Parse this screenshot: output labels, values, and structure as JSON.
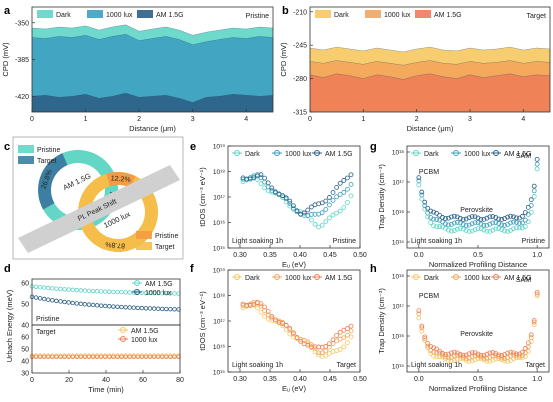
{
  "colors": {
    "dark": "#5fd5c7",
    "lux1000": "#3d9ec1",
    "am15": "#2c5f86",
    "t_dark": "#f6c85f",
    "t_lux1000": "#f3a55b",
    "t_am15": "#ee7d55",
    "c_pristine": "#62d7c5",
    "c_target": "#f5be4a",
    "c_dark_blue": "#3c7fa3",
    "c_orange": "#f39c43"
  },
  "panel_labels": [
    "a",
    "b",
    "c",
    "d",
    "e",
    "f",
    "g",
    "h"
  ],
  "chart_data": [
    {
      "id": "a",
      "type": "area",
      "tag": "Pristine",
      "ylabel": "CPD (mV)",
      "xlabel": "Distance (μm)",
      "xlim": [
        0,
        4.5
      ],
      "ylim": [
        -435,
        -335
      ],
      "xticks": [
        0,
        1,
        2,
        3,
        4
      ],
      "yticks": [
        -350,
        -385,
        -420
      ],
      "legend": [
        "Dark",
        "1000 lux",
        "AM 1.5G"
      ],
      "x": [
        0,
        0.25,
        0.5,
        0.75,
        1,
        1.25,
        1.5,
        1.75,
        2,
        2.25,
        2.5,
        2.75,
        3,
        3.25,
        3.5,
        3.75,
        4,
        4.25,
        4.5
      ],
      "series": [
        {
          "name": "Dark",
          "values": [
            -355,
            -356,
            -354,
            -355,
            -353,
            -357,
            -354,
            -352,
            -358,
            -356,
            -354,
            -357,
            -362,
            -359,
            -357,
            -355,
            -356,
            -354,
            -355
          ]
        },
        {
          "name": "1000 lux",
          "values": [
            -364,
            -365,
            -363,
            -364,
            -362,
            -366,
            -363,
            -361,
            -367,
            -365,
            -363,
            -366,
            -371,
            -368,
            -366,
            -364,
            -365,
            -363,
            -364
          ]
        },
        {
          "name": "AM 1.5G",
          "values": [
            -420,
            -419,
            -421,
            -420,
            -418,
            -422,
            -420,
            -417,
            -421,
            -420,
            -419,
            -422,
            -426,
            -421,
            -420,
            -418,
            -419,
            -420,
            -419
          ]
        }
      ]
    },
    {
      "id": "b",
      "type": "area",
      "tag": "Target",
      "ylabel": "CPD (mV)",
      "xlabel": "Distance (μm)",
      "xlim": [
        0,
        4.5
      ],
      "ylim": [
        -315,
        -205
      ],
      "xticks": [
        0,
        1,
        2,
        3,
        4
      ],
      "yticks": [
        -210,
        -245,
        -280,
        -315
      ],
      "legend": [
        "Dark",
        "1000 lux",
        "AM 1.5G"
      ],
      "x": [
        0,
        0.25,
        0.5,
        0.75,
        1,
        1.25,
        1.5,
        1.75,
        2,
        2.25,
        2.5,
        2.75,
        3,
        3.25,
        3.5,
        3.75,
        4,
        4.25,
        4.5
      ],
      "series": [
        {
          "name": "Dark",
          "values": [
            -248,
            -250,
            -247,
            -249,
            -251,
            -248,
            -250,
            -252,
            -249,
            -247,
            -250,
            -251,
            -248,
            -250,
            -249,
            -247,
            -250,
            -248,
            -249
          ]
        },
        {
          "name": "1000 lux",
          "values": [
            -262,
            -264,
            -261,
            -263,
            -265,
            -262,
            -264,
            -266,
            -263,
            -261,
            -264,
            -265,
            -262,
            -264,
            -263,
            -261,
            -264,
            -262,
            -263
          ]
        },
        {
          "name": "AM 1.5G",
          "values": [
            -276,
            -279,
            -275,
            -277,
            -280,
            -276,
            -278,
            -281,
            -277,
            -275,
            -278,
            -280,
            -276,
            -279,
            -277,
            -275,
            -278,
            -276,
            -277
          ]
        }
      ]
    },
    {
      "id": "c",
      "type": "pie",
      "center_text": [
        "AM 1.5G",
        "1000 lux"
      ],
      "band_text": "PL Peak Shift",
      "rings": [
        {
          "name": "AM 1.5G",
          "slices": [
            {
              "name": "Pristine",
              "value": 73.2,
              "label": "73.2%"
            },
            {
              "name": "Target",
              "value": 26.8,
              "label": "26.8%"
            }
          ]
        },
        {
          "name": "1000 lux",
          "slices": [
            {
              "name": "Pristine",
              "value": 12.2,
              "label": "12.2%"
            },
            {
              "name": "Target",
              "value": 87.8,
              "label": "87.8%"
            }
          ]
        }
      ],
      "legend_top": [
        "Pristine",
        "Target"
      ],
      "legend_bottom": [
        "Pristine",
        "Target"
      ]
    },
    {
      "id": "d",
      "type": "line",
      "ylabel": "Urbach Energy (meV)",
      "xlabel": "Time (min)",
      "xlim": [
        0,
        80
      ],
      "xticks": [
        0,
        20,
        40,
        60,
        80
      ],
      "top": {
        "tag": "Pristine",
        "ylim": [
          40,
          62
        ],
        "yticks": [
          40,
          50,
          60
        ],
        "series": [
          {
            "name": "AM 1.5G",
            "start": 58.5,
            "end": 54.5
          },
          {
            "name": "1000 lux",
            "start": 53.5,
            "end": 46.5
          }
        ]
      },
      "bottom": {
        "tag": "Target",
        "ylim": [
          30,
          70
        ],
        "yticks": [
          30,
          40,
          50,
          60
        ],
        "series": [
          {
            "name": "AM 1.5G",
            "value": 44.5
          },
          {
            "name": "1000 lux",
            "value": 43.5
          }
        ]
      }
    },
    {
      "id": "e",
      "type": "scatter",
      "tag": "Pristine",
      "note": "Light soaking 1h",
      "ylabel": "tDOS (cm⁻³ eV⁻¹)",
      "xlabel": "Eᵤ (eV)",
      "xlim": [
        0.28,
        0.5
      ],
      "ylim_log": [
        15,
        19
      ],
      "xticks": [
        0.3,
        0.35,
        0.4,
        0.45,
        0.5
      ],
      "yticks": [
        "10¹⁵",
        "10¹⁶",
        "10¹⁷",
        "10¹⁸",
        "10¹⁹"
      ],
      "legend": [
        "Dark",
        "1000 lux",
        "AM 1.5G"
      ],
      "series": [
        {
          "name": "Dark",
          "min_x": 0.43,
          "min_y": 15.9,
          "peak_x": 0.325,
          "peak_y": 17.7,
          "end_y": 17.2
        },
        {
          "name": "1000 lux",
          "min_x": 0.41,
          "min_y": 16.2,
          "peak_x": 0.33,
          "peak_y": 17.8,
          "end_y": 17.7
        },
        {
          "name": "AM 1.5G",
          "min_x": 0.4,
          "min_y": 16.4,
          "peak_x": 0.335,
          "peak_y": 17.8,
          "end_y": 18.1
        }
      ]
    },
    {
      "id": "f",
      "type": "scatter",
      "tag": "Target",
      "note": "Light soaking 1h",
      "ylabel": "tDOS (cm⁻³ eV⁻¹)",
      "xlabel": "Eᵤ (eV)",
      "xlim": [
        0.28,
        0.5
      ],
      "ylim_log": [
        15,
        19
      ],
      "xticks": [
        0.3,
        0.35,
        0.4,
        0.45,
        0.5
      ],
      "yticks": [
        "10¹⁵",
        "10¹⁶",
        "10¹⁷",
        "10¹⁸",
        "10¹⁹"
      ],
      "legend": [
        "Dark",
        "1000 lux",
        "AM 1.5G"
      ],
      "series": [
        {
          "name": "Dark",
          "min_x": 0.44,
          "min_y": 15.6,
          "peak_x": 0.32,
          "peak_y": 17.6,
          "end_y": 16.5
        },
        {
          "name": "1000 lux",
          "min_x": 0.43,
          "min_y": 15.8,
          "peak_x": 0.325,
          "peak_y": 17.7,
          "end_y": 16.8
        },
        {
          "name": "AM 1.5G",
          "min_x": 0.42,
          "min_y": 15.9,
          "peak_x": 0.33,
          "peak_y": 17.7,
          "end_y": 17.0
        }
      ]
    },
    {
      "id": "g",
      "type": "scatter",
      "tag": "Pristine",
      "note": "Light soaking 1h",
      "ylabel": "Trap Density (cm⁻³)",
      "xlabel": "Normalized Profiling Distance",
      "xlim": [
        -0.1,
        1.1
      ],
      "xticks": [
        0.0,
        0.5,
        1.0
      ],
      "ylim_log": [
        14.8,
        18.2
      ],
      "yticks": [
        "10¹⁵",
        "10¹⁶",
        "10¹⁷",
        "10¹⁸"
      ],
      "legend": [
        "Dark",
        "1000 lux",
        "AM 1.5G"
      ],
      "annotations": [
        "PCBM",
        "Perovskite",
        "SAM"
      ],
      "series": [
        {
          "name": "Dark",
          "left": 16.9,
          "mid": 15.4,
          "right": 17.4
        },
        {
          "name": "1000 lux",
          "left": 17.0,
          "mid": 15.6,
          "right": 17.6
        },
        {
          "name": "AM 1.5G",
          "left": 17.1,
          "mid": 15.8,
          "right": 17.8
        }
      ]
    },
    {
      "id": "h",
      "type": "scatter",
      "tag": "Target",
      "note": "Light soaking 1h",
      "ylabel": "Trap Density (cm⁻³)",
      "xlabel": "Normalized Profiling Distance",
      "xlim": [
        -0.1,
        1.1
      ],
      "xticks": [
        0.0,
        0.5,
        1.0
      ],
      "ylim_log": [
        14.8,
        18.2
      ],
      "yticks": [
        "10¹⁵",
        "10¹⁶",
        "10¹⁷",
        "10¹⁸"
      ],
      "legend": [
        "Dark",
        "1000 lux",
        "AM 1.5G"
      ],
      "annotations": [
        "PCBM",
        "Perovskite",
        "SAM"
      ],
      "series": [
        {
          "name": "Dark",
          "left": 16.6,
          "mid": 15.2,
          "right": 17.3
        },
        {
          "name": "1000 lux",
          "left": 16.7,
          "mid": 15.3,
          "right": 17.4
        },
        {
          "name": "AM 1.5G",
          "left": 16.8,
          "mid": 15.4,
          "right": 17.5
        }
      ]
    }
  ]
}
